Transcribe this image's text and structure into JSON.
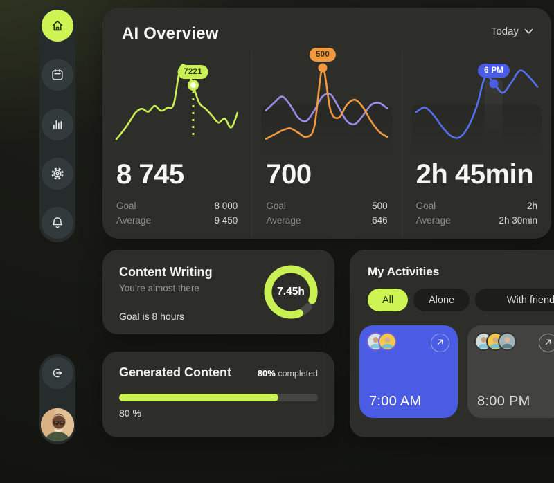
{
  "header": {
    "title": "AI Overview",
    "range_label": "Today"
  },
  "sidebar": {
    "items": [
      {
        "icon": "home-icon",
        "active": true
      },
      {
        "icon": "calendar-icon",
        "active": false
      },
      {
        "icon": "bar-chart-icon",
        "active": false
      },
      {
        "icon": "settings-icon",
        "active": false
      },
      {
        "icon": "bell-icon",
        "active": false
      }
    ],
    "logout_icon": "logout-icon",
    "avatar": "user-photo"
  },
  "stats": [
    {
      "value": "8 745",
      "goal_label": "Goal",
      "goal_value": "8 000",
      "average_label": "Average",
      "average_value": "9 450"
    },
    {
      "value": "700",
      "goal_label": "Goal",
      "goal_value": "500",
      "average_label": "Average",
      "average_value": "646"
    },
    {
      "value": "2h 45min",
      "goal_label": "Goal",
      "goal_value": "2h",
      "average_label": "Average",
      "average_value": "2h 30min"
    }
  ],
  "content_writing": {
    "title": "Content Writing",
    "subtitle": "You’re almost there",
    "goal_text": "Goal is 8 hours",
    "ring_label": "7.45h",
    "ring_color": "#c9f154"
  },
  "generated_content": {
    "title": "Generated Content",
    "completed_strong": "80%",
    "completed_rest": " completed",
    "progress_percent": 80,
    "progress_label": "80 %",
    "bar_color": "#c9f154"
  },
  "activities": {
    "title": "My Activities",
    "tabs": [
      {
        "label": "All",
        "active": true
      },
      {
        "label": "Alone",
        "active": false
      },
      {
        "label": "With friends",
        "active": false
      }
    ],
    "cards": [
      {
        "time": "7:00 AM",
        "style": "blue",
        "color": "#4a5ce4",
        "attendees": 2
      },
      {
        "time": "8:00 PM",
        "style": "dark",
        "color": "#424340",
        "attendees": 3
      }
    ]
  },
  "colors": {
    "accent_lime": "#c9f154",
    "orange": "#f0993f",
    "purple": "#9a8ce8",
    "blue_line": "#5570ee",
    "blue_card": "#4a5ce4",
    "card_bg": "#2d2e2a"
  },
  "chart_data": [
    {
      "type": "line",
      "name": "words-generated-sparkline",
      "series": [
        {
          "name": "words",
          "color": "#c9f154",
          "values": [
            25,
            33,
            42,
            52,
            56,
            53,
            59,
            54,
            57,
            61,
            97,
            98,
            80,
            62,
            56,
            49,
            42,
            46,
            37,
            52
          ]
        }
      ],
      "marker": {
        "series": 0,
        "index": 12,
        "label": "7221",
        "color": "#c9f154",
        "text_color": "#2c3513",
        "dot": "ring"
      }
    },
    {
      "type": "line",
      "name": "prompts-sparkline",
      "series": [
        {
          "name": "series-a",
          "color": "#9a8ce8",
          "values": [
            45,
            52,
            58,
            50,
            38,
            35,
            45,
            58,
            60,
            48,
            35,
            32,
            40,
            50,
            52,
            47
          ]
        },
        {
          "name": "series-b",
          "color": "#f0993f",
          "values": [
            18,
            22,
            26,
            28,
            24,
            20,
            30,
            85,
            45,
            38,
            50,
            55,
            48,
            35,
            25,
            20
          ]
        }
      ],
      "marker": {
        "series": 1,
        "index": 7,
        "label": "500",
        "color": "#f0993f",
        "text_color": "#3a2a10",
        "dot": "solid"
      }
    },
    {
      "type": "line",
      "name": "time-spent-sparkline",
      "series": [
        {
          "name": "time",
          "color": "#5570ee",
          "values": [
            30,
            33,
            28,
            20,
            14,
            13,
            20,
            34,
            54,
            49,
            43,
            50,
            58,
            54,
            47
          ]
        }
      ],
      "marker": {
        "series": 0,
        "index": 9,
        "label": "6 PM",
        "color": "#4a5ce4",
        "text_color": "#ffffff",
        "dot": "solid"
      }
    }
  ]
}
